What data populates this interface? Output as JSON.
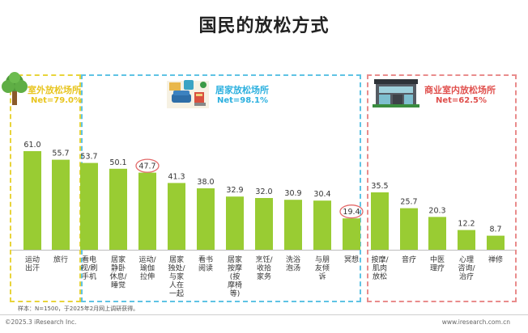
{
  "title": "国民的放松方式",
  "groups": [
    {
      "name": "室外放松场所",
      "net": "Net=79.0%",
      "color": "#e8c51e"
    },
    {
      "name": "居家放松场所",
      "net": "Net=98.1%",
      "color": "#2bb0df"
    },
    {
      "name": "商业室内放松场所",
      "net": "Net=62.5%",
      "color": "#e0504d"
    }
  ],
  "chart_data": {
    "type": "bar",
    "title": "国民的放松方式",
    "categories": [
      [
        "运动",
        "出汗"
      ],
      [
        "旅行"
      ],
      [
        "看电",
        "视/刷",
        "手机"
      ],
      [
        "居家",
        "静卧",
        "休息/",
        "睡觉"
      ],
      [
        "运动/",
        "瑜伽",
        "拉伸"
      ],
      [
        "居家",
        "独处/",
        "与家",
        "人在",
        "一起"
      ],
      [
        "看书",
        "阅读"
      ],
      [
        "居家",
        "按摩",
        "(按",
        "摩椅",
        "等)"
      ],
      [
        "烹饪/",
        "收拾",
        "家务"
      ],
      [
        "洗浴",
        "泡汤"
      ],
      [
        "与朋",
        "友倾",
        "诉"
      ],
      [
        "冥想"
      ],
      [
        "按摩/",
        "肌肉",
        "放松"
      ],
      [
        "音疗"
      ],
      [
        "中医",
        "理疗"
      ],
      [
        "心理",
        "咨询/",
        "治疗"
      ],
      [
        "禅修"
      ]
    ],
    "values": [
      61.0,
      55.7,
      53.7,
      50.1,
      47.7,
      41.3,
      38.0,
      32.9,
      32.0,
      30.9,
      30.4,
      19.4,
      35.5,
      25.7,
      20.3,
      12.2,
      8.7
    ],
    "value_labels": [
      "61.0",
      "55.7",
      "53.7",
      "50.1",
      "47.7",
      "41.3",
      "38.0",
      "32.9",
      "32.0",
      "30.9",
      "30.4",
      "19.4",
      "35.5",
      "25.7",
      "20.3",
      "12.2",
      "8.7"
    ],
    "circled": [
      4,
      11
    ],
    "bar_color": "#99cc33",
    "circle_color": "#e36a6a"
  },
  "footnote": "样本：N=1500，于2025年2月网上调研获得。",
  "copyright": "©2025.3 iResearch Inc.",
  "website": "www.iresearch.com.cn"
}
